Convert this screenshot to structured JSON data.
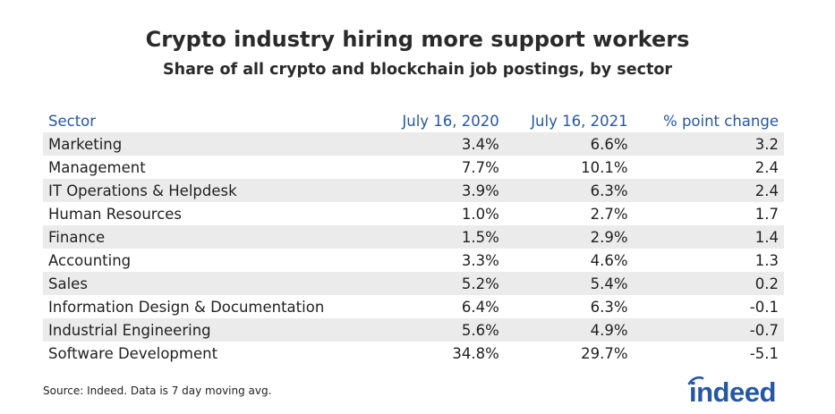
{
  "chart_data": {
    "type": "table",
    "title": "Crypto industry hiring more support workers",
    "subtitle": "Share of all crypto and blockchain job postings, by sector",
    "columns": [
      "Sector",
      "July 16, 2020",
      "July 16, 2021",
      "% point change"
    ],
    "rows": [
      {
        "sector": "Marketing",
        "y2020": "3.4%",
        "y2021": "6.6%",
        "change": "3.2"
      },
      {
        "sector": "Management",
        "y2020": "7.7%",
        "y2021": "10.1%",
        "change": "2.4"
      },
      {
        "sector": "IT Operations & Helpdesk",
        "y2020": "3.9%",
        "y2021": "6.3%",
        "change": "2.4"
      },
      {
        "sector": "Human Resources",
        "y2020": "1.0%",
        "y2021": "2.7%",
        "change": "1.7"
      },
      {
        "sector": "Finance",
        "y2020": "1.5%",
        "y2021": "2.9%",
        "change": "1.4"
      },
      {
        "sector": "Accounting",
        "y2020": "3.3%",
        "y2021": "4.6%",
        "change": "1.3"
      },
      {
        "sector": "Sales",
        "y2020": "5.2%",
        "y2021": "5.4%",
        "change": "0.2"
      },
      {
        "sector": "Information Design & Documentation",
        "y2020": "6.4%",
        "y2021": "6.3%",
        "change": "-0.1"
      },
      {
        "sector": "Industrial Engineering",
        "y2020": "5.6%",
        "y2021": "4.9%",
        "change": "-0.7"
      },
      {
        "sector": "Software Development",
        "y2020": "34.8%",
        "y2021": "29.7%",
        "change": "-5.1"
      }
    ],
    "source": "Source: Indeed. Data is 7 day moving avg.",
    "brand": "indeed",
    "colors": {
      "header_text": "#2557a7",
      "stripe": "#ebebeb",
      "brand": "#2557a7"
    }
  }
}
